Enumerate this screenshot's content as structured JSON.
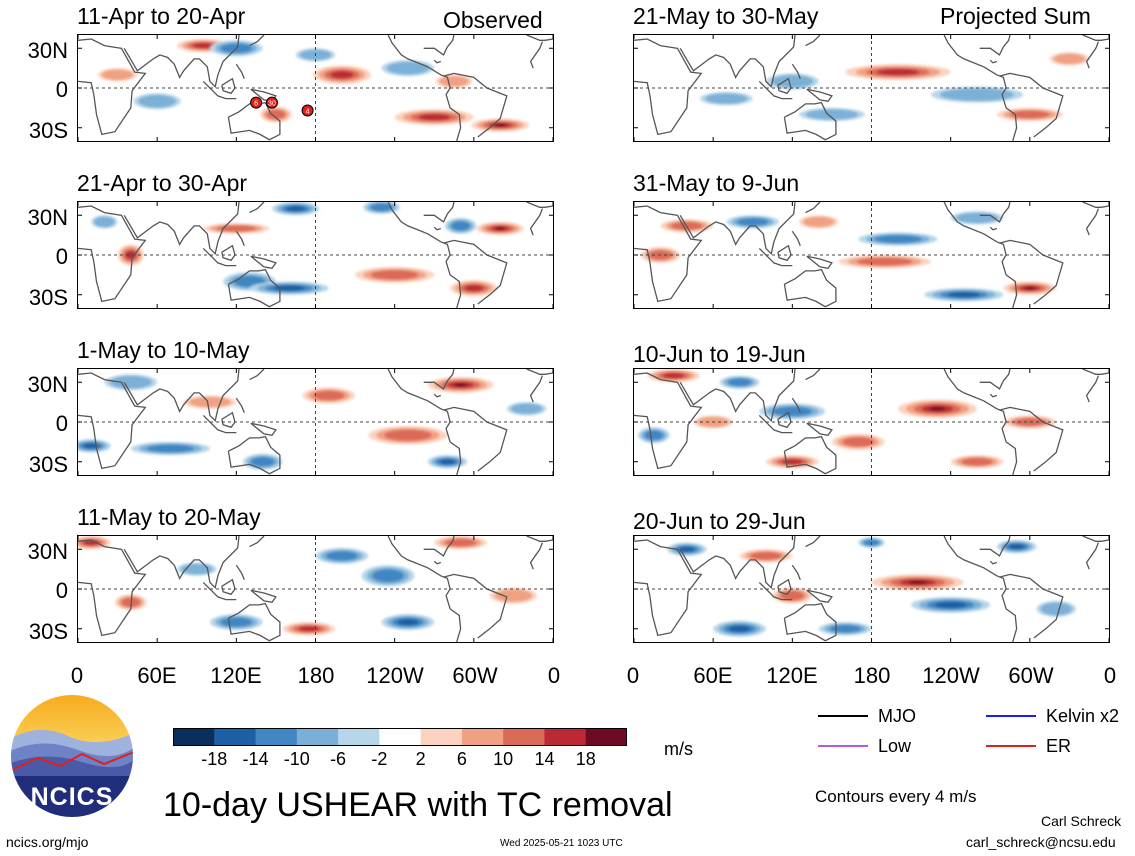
{
  "left_header": "Observed",
  "right_header": "Projected Sum",
  "panels": {
    "left": [
      {
        "title": "11-Apr to 20-Apr",
        "has_storms": true
      },
      {
        "title": "21-Apr to 30-Apr",
        "has_storms": false
      },
      {
        "title": "1-May to 10-May",
        "has_storms": false
      },
      {
        "title": "11-May to 20-May",
        "has_storms": false
      }
    ],
    "right": [
      {
        "title": "21-May to 30-May"
      },
      {
        "title": "31-May to 9-Jun"
      },
      {
        "title": "10-Jun to 19-Jun"
      },
      {
        "title": "20-Jun to 29-Jun"
      }
    ]
  },
  "storm_markers": [
    "6",
    "30",
    "4"
  ],
  "y_ticks": [
    "30N",
    "0",
    "30S"
  ],
  "x_ticks": [
    "0",
    "60E",
    "120E",
    "180",
    "120W",
    "60W",
    "0"
  ],
  "colorbar": {
    "colors": [
      "#0b2e5c",
      "#1d5fa3",
      "#3f86c2",
      "#7bb0d6",
      "#b6d6ea",
      "#ffffff",
      "#fbd3c0",
      "#f1a183",
      "#dc6a58",
      "#bb2a34",
      "#6e0a22"
    ],
    "labels": [
      "-18",
      "-14",
      "-10",
      "-6",
      "-2",
      "2",
      "6",
      "10",
      "14",
      "18"
    ],
    "units": "m/s"
  },
  "legend": [
    {
      "label": "MJO",
      "color": "#000000"
    },
    {
      "label": "Kelvin x2",
      "color": "#1a1aff"
    },
    {
      "label": "Low",
      "color": "#b05be0"
    },
    {
      "label": "ER",
      "color": "#e0201a"
    }
  ],
  "contours_note": "Contours every 4 m/s",
  "main_title": "10-day USHEAR with TC removal",
  "logo_text": "NCICS",
  "author": "Carl Schreck",
  "email": "carl_schreck@ncsu.edu",
  "site": "ncics.org/mjo",
  "timestamp": "Wed 2025-05-21 1023 UTC"
}
